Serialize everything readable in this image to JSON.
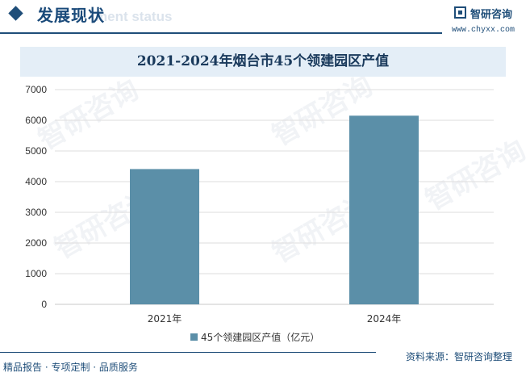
{
  "header": {
    "section_title": "发展现状",
    "section_subtitle": "ment status",
    "brand_name": "智研咨询",
    "brand_url": "www.chyxx.com"
  },
  "footer": {
    "left_text": "精品报告 · 专项定制 · 品质服务",
    "source_text": "资料来源：智研咨询整理"
  },
  "watermark": {
    "text": "智研咨询"
  },
  "colors": {
    "bar": "#5b8fa8",
    "accent": "#1f4e79"
  },
  "chart_data": {
    "type": "bar",
    "title": "2021-2024年烟台市45个领建园区产值",
    "categories": [
      "2021年",
      "2024年"
    ],
    "series": [
      {
        "name": "45个领建园区产值（亿元）",
        "values": [
          4410,
          6150
        ]
      }
    ],
    "xlabel": "",
    "ylabel": "",
    "ylim": [
      0,
      7000
    ],
    "yticks": [
      0,
      1000,
      2000,
      3000,
      4000,
      5000,
      6000,
      7000
    ],
    "grid": true,
    "legend_position": "bottom-center"
  }
}
